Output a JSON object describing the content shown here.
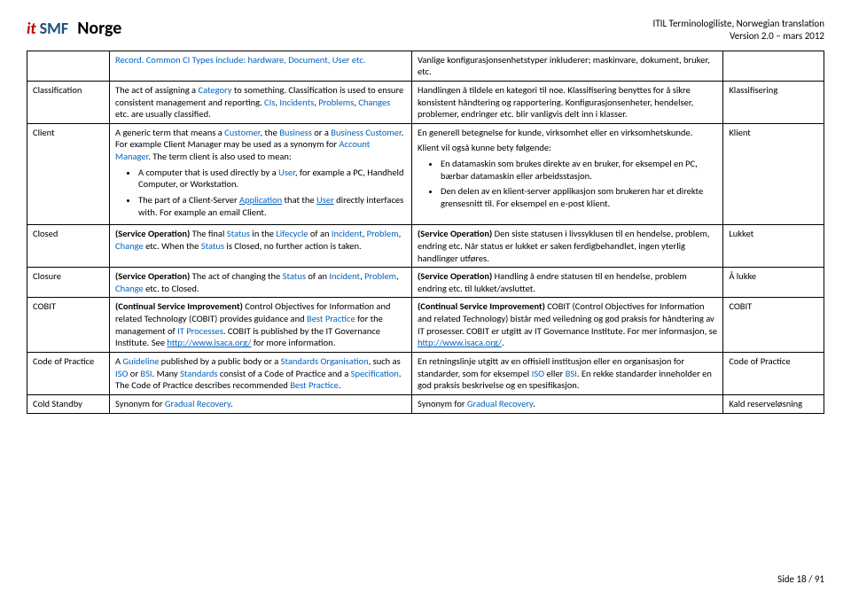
{
  "header": {
    "logo_it": "it",
    "logo_smf": "SMF",
    "logo_norge": "Norge",
    "right_line1": "ITIL Terminologiliste, Norwegian translation",
    "right_line2": "Version 2.0 – mars 2012"
  },
  "rows": {
    "r0_c2_pre": "Record. Common CI Types include: hardware, ",
    "r0_c2_doc": "Document",
    "r0_c2_mid": ", ",
    "r0_c2_user": "User",
    "r0_c2_post": " etc.",
    "r0_c3": "Vanlige konfigurasjonsenhetstyper inkluderer; maskinvare, dokument, bruker, etc.",
    "r1_c1": "Classification",
    "r1_c2_a": "The act of assigning a ",
    "r1_c2_cat": "Category",
    "r1_c2_b": " to something. Classification is used to ensure consistent management and reporting. ",
    "r1_c2_ci": "CIs",
    "r1_c2_c": ", ",
    "r1_c2_inc": "Incidents",
    "r1_c2_d": ", ",
    "r1_c2_prob": "Problems",
    "r1_c2_e": ", ",
    "r1_c2_chg": "Changes",
    "r1_c2_f": " etc. are usually classified.",
    "r1_c3": "Handlingen å tildele en kategori til noe. Klassifisering benyttes for å sikre konsistent håndtering og rapportering. Konfigurasjonsenheter, hendelser, problemer, endringer etc. blir vanligvis delt inn i klasser.",
    "r1_c4": "Klassifisering",
    "r2_c1": "Client",
    "r2_c2_a": "A generic term that means a ",
    "r2_c2_cust": "Customer",
    "r2_c2_b": ", the ",
    "r2_c2_bus": "Business",
    "r2_c2_c": " or a ",
    "r2_c2_bc": "Business Customer",
    "r2_c2_d": ". For example Client Manager may be used as a synonym for ",
    "r2_c2_am": "Account Manager",
    "r2_c2_e": ". The term client is also used to mean:",
    "r2_li1_a": "A computer that is used directly by a ",
    "r2_li1_user": "User",
    "r2_li1_b": ", for example a PC, Handheld Computer, or Workstation.",
    "r2_li2_a": "The part of a Client-Server ",
    "r2_li2_app": "Application",
    "r2_li2_b": " that the ",
    "r2_li2_user": "User",
    "r2_li2_c": " directly interfaces with. For example an email Client.",
    "r2_c3_p1": "En generell betegnelse for kunde, virksomhet eller en virksomhetskunde.",
    "r2_c3_p2": "Klient vil også kunne bety følgende:",
    "r2_c3_li1": "En datamaskin som brukes direkte av en bruker, for eksempel en PC, bærbar datamaskin eller arbeidsstasjon.",
    "r2_c3_li2": "Den delen av en klient-server applikasjon som brukeren har et direkte grensesnitt til. For eksempel en e-post klient.",
    "r2_c4": "Klient",
    "r3_c1": "Closed",
    "r3_c2_a": "(Service Operation) ",
    "r3_c2_b": "The final ",
    "r3_c2_stat": "Status",
    "r3_c2_c": " in the ",
    "r3_c2_lc": "Lifecycle",
    "r3_c2_d": " of an ",
    "r3_c2_inc": "Incident",
    "r3_c2_e": ", ",
    "r3_c2_prob": "Problem",
    "r3_c2_f": ", ",
    "r3_c2_chg": "Change",
    "r3_c2_g": " etc. When the ",
    "r3_c2_stat2": "Status",
    "r3_c2_h": " is Closed, no further action is taken.",
    "r3_c3_a": "(Service Operation) ",
    "r3_c3_b": "Den siste statusen i livssyklusen til en hendelse, problem, endring etc. Når status er lukket er saken ferdigbehandlet, ingen yterlig handlinger utføres.",
    "r3_c4": "Lukket",
    "r4_c1": "Closure",
    "r4_c2_a": "(Service Operation) ",
    "r4_c2_b": "The act of changing the ",
    "r4_c2_stat": "Status",
    "r4_c2_c": " of an ",
    "r4_c2_inc": "Incident",
    "r4_c2_d": ", ",
    "r4_c2_prob": "Problem",
    "r4_c2_e": ", ",
    "r4_c2_chg": "Change",
    "r4_c2_f": " etc. to Closed.",
    "r4_c3_a": "(Service Operation) ",
    "r4_c3_b": "Handling å endre statusen til en hendelse, problem endring etc. til lukket/avsluttet.",
    "r4_c4": "Å lukke",
    "r5_c1": "COBIT",
    "r5_c2_a": "(Continual Service Improvement) ",
    "r5_c2_b": "Control Objectives for Information and related Technology (COBIT) provides guidance and ",
    "r5_c2_bp": "Best Practice",
    "r5_c2_c": " for the management of ",
    "r5_c2_itp": "IT Processes",
    "r5_c2_d": ". COBIT is published by the IT Governance Institute. See ",
    "r5_c2_url": "http://www.isaca.org/",
    "r5_c2_e": " for more information.",
    "r5_c3_a": "(Continual Service Improvement) ",
    "r5_c3_b": "COBIT (Control Objectives for Information and related Technology) bistår med veiledning og god praksis for håndtering av IT prosesser. COBIT er utgitt av IT Governance Institute. For mer informasjon, se ",
    "r5_c3_url": "http://www.isaca.org/",
    "r5_c3_c": ".",
    "r5_c4": "COBIT",
    "r6_c1": "Code of Practice",
    "r6_c2_a": "A ",
    "r6_c2_gl": "Guideline",
    "r6_c2_b": " published by a public body or a ",
    "r6_c2_so": "Standards Organisation",
    "r6_c2_c": ", such as ",
    "r6_c2_iso": "ISO",
    "r6_c2_d": " or ",
    "r6_c2_bsi": "BSI",
    "r6_c2_e": ". Many ",
    "r6_c2_std": "Standards",
    "r6_c2_f": " consist of a Code of Practice and a ",
    "r6_c2_spec": "Specification",
    "r6_c2_g": ". The Code of Practice describes recommended ",
    "r6_c2_bp": "Best Practice",
    "r6_c2_h": ".",
    "r6_c3_a": "En retningslinje utgitt av en offisiell institusjon eller en organisasjon for standarder, som for eksempel ",
    "r6_c3_iso": "ISO",
    "r6_c3_b": " eller ",
    "r6_c3_bsi": "BSI",
    "r6_c3_c": ". En rekke standarder inneholder en god praksis beskrivelse og en spesifikasjon.",
    "r6_c4": "Code of Practice",
    "r7_c1": "Cold Standby",
    "r7_c2_a": "Synonym for ",
    "r7_c2_gr": "Gradual Recovery",
    "r7_c2_b": ".",
    "r7_c3_a": "Synonym for ",
    "r7_c3_gr": "Gradual Recovery",
    "r7_c3_b": ".",
    "r7_c4": "Kald reserveløsning"
  },
  "footer": "Side 18 / 91"
}
